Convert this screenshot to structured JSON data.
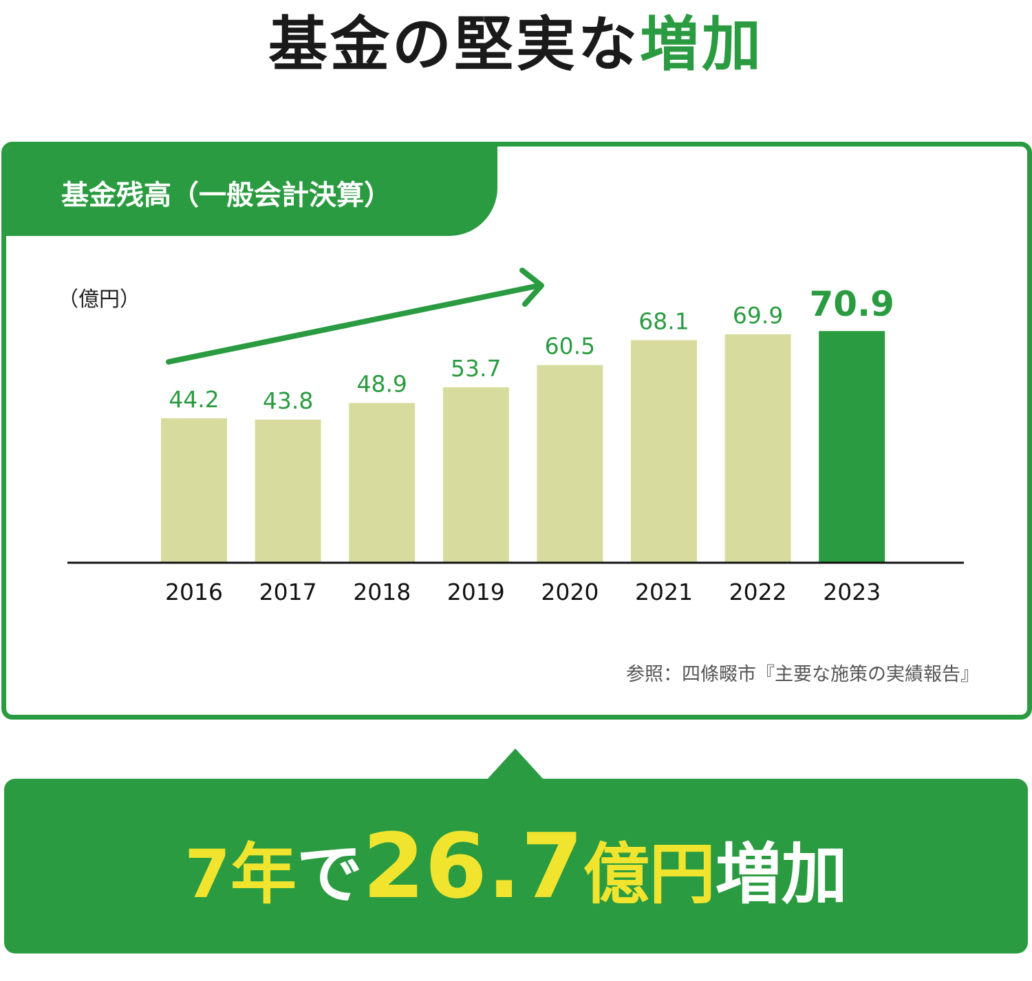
{
  "headline": {
    "part1": "基金の堅実な",
    "part2": "増加"
  },
  "panel": {
    "title": "基金残高（一般会計決算）"
  },
  "source_note": "参照：四條畷市『主要な施策の実績報告』",
  "callout": {
    "years": "7年",
    "de": "で",
    "amount": "26.7",
    "unit": "億円",
    "increase": "増加"
  },
  "chart_data": {
    "type": "bar",
    "title": "基金残高（一般会計決算）",
    "ylabel": "（億円）",
    "xlabel": "",
    "categories": [
      "2016",
      "2017",
      "2018",
      "2019",
      "2020",
      "2021",
      "2022",
      "2023"
    ],
    "values": [
      44.2,
      43.8,
      48.9,
      53.7,
      60.5,
      68.1,
      69.9,
      70.9
    ],
    "value_labels": [
      "44.2",
      "43.8",
      "48.9",
      "53.7",
      "60.5",
      "68.1",
      "69.9",
      "70.9"
    ],
    "ylim": [
      0,
      80
    ],
    "grid": false,
    "legend": "none",
    "bar_color": "#d7dc9e",
    "highlight_color": "#2a9b40",
    "highlight_index": 7,
    "label_color": "#2a9b40",
    "trend_arrow": true
  }
}
